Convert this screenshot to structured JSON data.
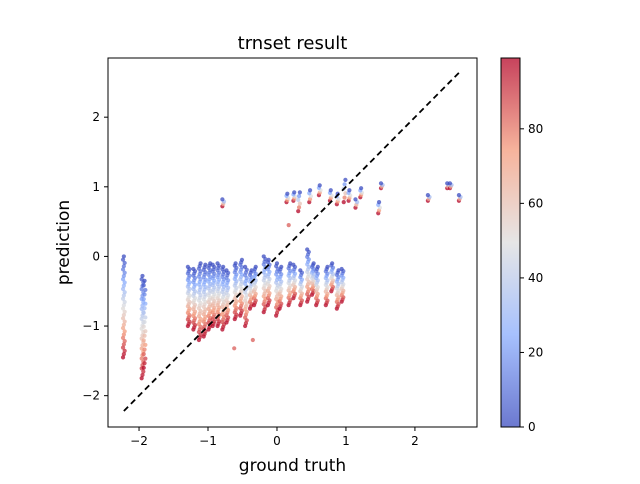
{
  "chart_data": {
    "type": "scatter",
    "title": "trnset result",
    "xlabel": "ground truth",
    "ylabel": "prediction",
    "xlim": [
      -2.45,
      2.9
    ],
    "ylim": [
      -2.45,
      2.85
    ],
    "xticks": [
      -2,
      -1,
      0,
      1,
      2
    ],
    "yticks": [
      -2,
      -1,
      0,
      1,
      2
    ],
    "grid": false,
    "reference_line": {
      "style": "dashed",
      "color": "#000000",
      "from": [
        -2.22,
        -2.22
      ],
      "to": [
        2.65,
        2.65
      ]
    },
    "colorbar": {
      "colormap": "coolwarm",
      "range": [
        0,
        99
      ],
      "ticks": [
        0,
        20,
        40,
        60,
        80
      ],
      "point_alpha": 0.75
    },
    "clusters": [
      {
        "x": -2.22,
        "y_low": -1.45,
        "y_high": 0.0,
        "count": 32
      },
      {
        "x": -1.95,
        "y_low": -1.75,
        "y_high": -0.28,
        "count": 32
      },
      {
        "x": -1.92,
        "y_low": -1.6,
        "y_high": -0.35,
        "count": 20
      },
      {
        "x": -1.28,
        "y_low": -1.0,
        "y_high": -0.15,
        "count": 28
      },
      {
        "x": -1.2,
        "y_low": -1.05,
        "y_high": -0.18,
        "count": 28
      },
      {
        "x": -1.12,
        "y_low": -1.2,
        "y_high": -0.1,
        "count": 30
      },
      {
        "x": -1.05,
        "y_low": -1.15,
        "y_high": -0.12,
        "count": 30
      },
      {
        "x": -0.98,
        "y_low": -1.05,
        "y_high": -0.1,
        "count": 30
      },
      {
        "x": -0.92,
        "y_low": -1.0,
        "y_high": -0.12,
        "count": 28
      },
      {
        "x": -0.85,
        "y_low": -1.0,
        "y_high": -0.1,
        "count": 28
      },
      {
        "x": -0.78,
        "y_low": -1.05,
        "y_high": -0.15,
        "count": 26
      },
      {
        "x": -0.72,
        "y_low": -0.95,
        "y_high": -0.2,
        "count": 22
      },
      {
        "x": -0.6,
        "y_low": -0.9,
        "y_high": -0.1,
        "count": 26
      },
      {
        "x": -0.52,
        "y_low": -0.85,
        "y_high": -0.05,
        "count": 24
      },
      {
        "x": -0.45,
        "y_low": -1.0,
        "y_high": -0.15,
        "count": 22
      },
      {
        "x": -0.38,
        "y_low": -0.75,
        "y_high": -0.2,
        "count": 18
      },
      {
        "x": -0.32,
        "y_low": -0.7,
        "y_high": -0.15,
        "count": 18
      },
      {
        "x": -0.18,
        "y_low": -0.8,
        "y_high": 0.0,
        "count": 22
      },
      {
        "x": -0.12,
        "y_low": -0.7,
        "y_high": -0.05,
        "count": 20
      },
      {
        "x": 0.0,
        "y_low": -0.85,
        "y_high": -0.1,
        "count": 20
      },
      {
        "x": 0.05,
        "y_low": -0.75,
        "y_high": -0.15,
        "count": 18
      },
      {
        "x": 0.18,
        "y_low": -0.7,
        "y_high": -0.1,
        "count": 18
      },
      {
        "x": 0.25,
        "y_low": -0.6,
        "y_high": -0.12,
        "count": 16
      },
      {
        "x": 0.35,
        "y_low": -0.7,
        "y_high": -0.2,
        "count": 16
      },
      {
        "x": 0.45,
        "y_low": -0.65,
        "y_high": 0.1,
        "count": 22
      },
      {
        "x": 0.52,
        "y_low": -0.55,
        "y_high": -0.1,
        "count": 18
      },
      {
        "x": 0.58,
        "y_low": -0.7,
        "y_high": -0.15,
        "count": 18
      },
      {
        "x": 0.72,
        "y_low": -0.7,
        "y_high": -0.15,
        "count": 18
      },
      {
        "x": 0.8,
        "y_low": -0.5,
        "y_high": -0.1,
        "count": 14
      },
      {
        "x": 0.88,
        "y_low": -0.75,
        "y_high": -0.2,
        "count": 18
      },
      {
        "x": 0.95,
        "y_low": -0.65,
        "y_high": -0.18,
        "count": 16
      },
      {
        "x": -0.78,
        "y_low": 0.72,
        "y_high": 0.82,
        "count": 4
      },
      {
        "x": 0.15,
        "y_low": 0.78,
        "y_high": 0.9,
        "count": 5
      },
      {
        "x": 0.25,
        "y_low": 0.8,
        "y_high": 0.92,
        "count": 5
      },
      {
        "x": 0.32,
        "y_low": 0.65,
        "y_high": 0.92,
        "count": 6
      },
      {
        "x": 0.48,
        "y_low": 0.78,
        "y_high": 0.95,
        "count": 5
      },
      {
        "x": 0.62,
        "y_low": 0.88,
        "y_high": 1.02,
        "count": 5
      },
      {
        "x": 0.78,
        "y_low": 0.8,
        "y_high": 0.95,
        "count": 5
      },
      {
        "x": 0.88,
        "y_low": 0.75,
        "y_high": 0.9,
        "count": 5
      },
      {
        "x": 0.98,
        "y_low": 0.78,
        "y_high": 1.1,
        "count": 6
      },
      {
        "x": 1.05,
        "y_low": 0.8,
        "y_high": 0.95,
        "count": 5
      },
      {
        "x": 1.15,
        "y_low": 0.7,
        "y_high": 0.82,
        "count": 4
      },
      {
        "x": 1.22,
        "y_low": 0.85,
        "y_high": 0.98,
        "count": 5
      },
      {
        "x": 1.48,
        "y_low": 0.62,
        "y_high": 0.78,
        "count": 5
      },
      {
        "x": 1.52,
        "y_low": 0.98,
        "y_high": 1.05,
        "count": 4
      },
      {
        "x": 2.2,
        "y_low": 0.8,
        "y_high": 0.88,
        "count": 4
      },
      {
        "x": 2.48,
        "y_low": 0.98,
        "y_high": 1.05,
        "count": 4
      },
      {
        "x": 2.52,
        "y_low": 0.98,
        "y_high": 1.05,
        "count": 4
      },
      {
        "x": 2.65,
        "y_low": 0.8,
        "y_high": 0.88,
        "count": 4
      }
    ],
    "outliers": [
      {
        "x": 0.17,
        "y": 0.45
      },
      {
        "x": -0.62,
        "y": -1.32
      },
      {
        "x": -0.35,
        "y": -1.2
      }
    ]
  }
}
